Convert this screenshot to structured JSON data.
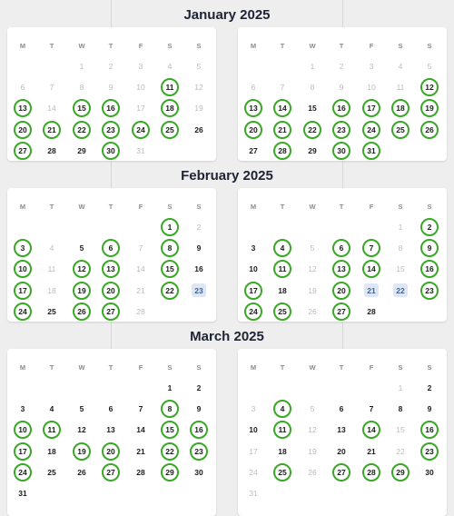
{
  "colors": {
    "selected_ring": "#3aa827",
    "highlight": "#dce6f5",
    "dim_text": "#bcbcbc"
  },
  "weekdays": [
    "M",
    "T",
    "W",
    "T",
    "F",
    "S",
    "S"
  ],
  "months": [
    {
      "title": "January 2025",
      "calendars": [
        {
          "rows": [
            [
              null,
              null,
              {
                "d": "1",
                "s": "dim"
              },
              {
                "d": "2",
                "s": "dim"
              },
              {
                "d": "3",
                "s": "dim"
              },
              {
                "d": "4",
                "s": "dim"
              },
              {
                "d": "5",
                "s": "dim"
              }
            ],
            [
              {
                "d": "6",
                "s": "dim"
              },
              {
                "d": "7",
                "s": "dim"
              },
              {
                "d": "8",
                "s": "dim"
              },
              {
                "d": "9",
                "s": "dim"
              },
              {
                "d": "10",
                "s": "dim"
              },
              {
                "d": "11",
                "s": "sel"
              },
              {
                "d": "12",
                "s": "dim"
              }
            ],
            [
              {
                "d": "13",
                "s": "sel"
              },
              {
                "d": "14",
                "s": "dim"
              },
              {
                "d": "15",
                "s": "sel"
              },
              {
                "d": "16",
                "s": "sel"
              },
              {
                "d": "17",
                "s": "dim"
              },
              {
                "d": "18",
                "s": "sel"
              },
              {
                "d": "19",
                "s": "dim"
              }
            ],
            [
              {
                "d": "20",
                "s": "sel"
              },
              {
                "d": "21",
                "s": "sel"
              },
              {
                "d": "22",
                "s": "sel"
              },
              {
                "d": "23",
                "s": "sel"
              },
              {
                "d": "24",
                "s": "sel"
              },
              {
                "d": "25",
                "s": "sel"
              },
              {
                "d": "26",
                "s": "n"
              }
            ],
            [
              {
                "d": "27",
                "s": "sel"
              },
              {
                "d": "28",
                "s": "n"
              },
              {
                "d": "29",
                "s": "n"
              },
              {
                "d": "30",
                "s": "sel"
              },
              {
                "d": "31",
                "s": "dim"
              },
              null,
              null
            ]
          ]
        },
        {
          "rows": [
            [
              null,
              null,
              {
                "d": "1",
                "s": "dim"
              },
              {
                "d": "2",
                "s": "dim"
              },
              {
                "d": "3",
                "s": "dim"
              },
              {
                "d": "4",
                "s": "dim"
              },
              {
                "d": "5",
                "s": "dim"
              }
            ],
            [
              {
                "d": "6",
                "s": "dim"
              },
              {
                "d": "7",
                "s": "dim"
              },
              {
                "d": "8",
                "s": "dim"
              },
              {
                "d": "9",
                "s": "dim"
              },
              {
                "d": "10",
                "s": "dim"
              },
              {
                "d": "11",
                "s": "dim"
              },
              {
                "d": "12",
                "s": "sel"
              }
            ],
            [
              {
                "d": "13",
                "s": "sel"
              },
              {
                "d": "14",
                "s": "sel"
              },
              {
                "d": "15",
                "s": "n"
              },
              {
                "d": "16",
                "s": "sel"
              },
              {
                "d": "17",
                "s": "sel"
              },
              {
                "d": "18",
                "s": "sel"
              },
              {
                "d": "19",
                "s": "sel"
              }
            ],
            [
              {
                "d": "20",
                "s": "sel"
              },
              {
                "d": "21",
                "s": "sel"
              },
              {
                "d": "22",
                "s": "sel"
              },
              {
                "d": "23",
                "s": "sel"
              },
              {
                "d": "24",
                "s": "sel"
              },
              {
                "d": "25",
                "s": "sel"
              },
              {
                "d": "26",
                "s": "sel"
              }
            ],
            [
              {
                "d": "27",
                "s": "n"
              },
              {
                "d": "28",
                "s": "sel"
              },
              {
                "d": "29",
                "s": "n"
              },
              {
                "d": "30",
                "s": "sel"
              },
              {
                "d": "31",
                "s": "sel"
              },
              null,
              null
            ]
          ]
        }
      ]
    },
    {
      "title": "February 2025",
      "calendars": [
        {
          "rows": [
            [
              null,
              null,
              null,
              null,
              null,
              {
                "d": "1",
                "s": "sel"
              },
              {
                "d": "2",
                "s": "dim"
              }
            ],
            [
              {
                "d": "3",
                "s": "sel"
              },
              {
                "d": "4",
                "s": "dim"
              },
              {
                "d": "5",
                "s": "n"
              },
              {
                "d": "6",
                "s": "sel"
              },
              {
                "d": "7",
                "s": "dim"
              },
              {
                "d": "8",
                "s": "sel"
              },
              {
                "d": "9",
                "s": "n"
              }
            ],
            [
              {
                "d": "10",
                "s": "sel"
              },
              {
                "d": "11",
                "s": "dim"
              },
              {
                "d": "12",
                "s": "sel"
              },
              {
                "d": "13",
                "s": "sel"
              },
              {
                "d": "14",
                "s": "dim"
              },
              {
                "d": "15",
                "s": "sel"
              },
              {
                "d": "16",
                "s": "n"
              }
            ],
            [
              {
                "d": "17",
                "s": "sel"
              },
              {
                "d": "18",
                "s": "dim"
              },
              {
                "d": "19",
                "s": "sel"
              },
              {
                "d": "20",
                "s": "sel"
              },
              {
                "d": "21",
                "s": "dim"
              },
              {
                "d": "22",
                "s": "sel"
              },
              {
                "d": "23",
                "s": "hl"
              }
            ],
            [
              {
                "d": "24",
                "s": "sel"
              },
              {
                "d": "25",
                "s": "n"
              },
              {
                "d": "26",
                "s": "sel"
              },
              {
                "d": "27",
                "s": "sel"
              },
              {
                "d": "28",
                "s": "dim"
              },
              null,
              null
            ]
          ]
        },
        {
          "rows": [
            [
              null,
              null,
              null,
              null,
              null,
              {
                "d": "1",
                "s": "dim"
              },
              {
                "d": "2",
                "s": "sel"
              }
            ],
            [
              {
                "d": "3",
                "s": "n"
              },
              {
                "d": "4",
                "s": "sel"
              },
              {
                "d": "5",
                "s": "dim"
              },
              {
                "d": "6",
                "s": "sel"
              },
              {
                "d": "7",
                "s": "sel"
              },
              {
                "d": "8",
                "s": "dim"
              },
              {
                "d": "9",
                "s": "sel"
              }
            ],
            [
              {
                "d": "10",
                "s": "n"
              },
              {
                "d": "11",
                "s": "sel"
              },
              {
                "d": "12",
                "s": "dim"
              },
              {
                "d": "13",
                "s": "sel"
              },
              {
                "d": "14",
                "s": "sel"
              },
              {
                "d": "15",
                "s": "dim"
              },
              {
                "d": "16",
                "s": "sel"
              }
            ],
            [
              {
                "d": "17",
                "s": "sel"
              },
              {
                "d": "18",
                "s": "n"
              },
              {
                "d": "19",
                "s": "dim"
              },
              {
                "d": "20",
                "s": "sel"
              },
              {
                "d": "21",
                "s": "hl"
              },
              {
                "d": "22",
                "s": "hl"
              },
              {
                "d": "23",
                "s": "sel"
              }
            ],
            [
              {
                "d": "24",
                "s": "sel"
              },
              {
                "d": "25",
                "s": "sel"
              },
              {
                "d": "26",
                "s": "dim"
              },
              {
                "d": "27",
                "s": "sel"
              },
              {
                "d": "28",
                "s": "n"
              },
              null,
              null
            ]
          ]
        }
      ]
    },
    {
      "title": "March 2025",
      "calendars": [
        {
          "rows": [
            [
              null,
              null,
              null,
              null,
              null,
              {
                "d": "1",
                "s": "n"
              },
              {
                "d": "2",
                "s": "n"
              }
            ],
            [
              {
                "d": "3",
                "s": "n"
              },
              {
                "d": "4",
                "s": "n"
              },
              {
                "d": "5",
                "s": "n"
              },
              {
                "d": "6",
                "s": "n"
              },
              {
                "d": "7",
                "s": "n"
              },
              {
                "d": "8",
                "s": "sel"
              },
              {
                "d": "9",
                "s": "n"
              }
            ],
            [
              {
                "d": "10",
                "s": "sel"
              },
              {
                "d": "11",
                "s": "sel"
              },
              {
                "d": "12",
                "s": "n"
              },
              {
                "d": "13",
                "s": "n"
              },
              {
                "d": "14",
                "s": "n"
              },
              {
                "d": "15",
                "s": "sel"
              },
              {
                "d": "16",
                "s": "sel"
              }
            ],
            [
              {
                "d": "17",
                "s": "sel"
              },
              {
                "d": "18",
                "s": "n"
              },
              {
                "d": "19",
                "s": "sel"
              },
              {
                "d": "20",
                "s": "sel"
              },
              {
                "d": "21",
                "s": "n"
              },
              {
                "d": "22",
                "s": "sel"
              },
              {
                "d": "23",
                "s": "sel"
              }
            ],
            [
              {
                "d": "24",
                "s": "sel"
              },
              {
                "d": "25",
                "s": "n"
              },
              {
                "d": "26",
                "s": "n"
              },
              {
                "d": "27",
                "s": "sel"
              },
              {
                "d": "28",
                "s": "n"
              },
              {
                "d": "29",
                "s": "sel"
              },
              {
                "d": "30",
                "s": "n"
              }
            ],
            [
              {
                "d": "31",
                "s": "n"
              },
              null,
              null,
              null,
              null,
              null,
              null
            ]
          ]
        },
        {
          "rows": [
            [
              null,
              null,
              null,
              null,
              null,
              {
                "d": "1",
                "s": "dim"
              },
              {
                "d": "2",
                "s": "n"
              }
            ],
            [
              {
                "d": "3",
                "s": "dim"
              },
              {
                "d": "4",
                "s": "sel"
              },
              {
                "d": "5",
                "s": "dim"
              },
              {
                "d": "6",
                "s": "n"
              },
              {
                "d": "7",
                "s": "n"
              },
              {
                "d": "8",
                "s": "n"
              },
              {
                "d": "9",
                "s": "n"
              }
            ],
            [
              {
                "d": "10",
                "s": "n"
              },
              {
                "d": "11",
                "s": "sel"
              },
              {
                "d": "12",
                "s": "dim"
              },
              {
                "d": "13",
                "s": "n"
              },
              {
                "d": "14",
                "s": "sel"
              },
              {
                "d": "15",
                "s": "dim"
              },
              {
                "d": "16",
                "s": "sel"
              }
            ],
            [
              {
                "d": "17",
                "s": "dim"
              },
              {
                "d": "18",
                "s": "n"
              },
              {
                "d": "19",
                "s": "dim"
              },
              {
                "d": "20",
                "s": "n"
              },
              {
                "d": "21",
                "s": "n"
              },
              {
                "d": "22",
                "s": "dim"
              },
              {
                "d": "23",
                "s": "sel"
              }
            ],
            [
              {
                "d": "24",
                "s": "dim"
              },
              {
                "d": "25",
                "s": "sel"
              },
              {
                "d": "26",
                "s": "dim"
              },
              {
                "d": "27",
                "s": "sel"
              },
              {
                "d": "28",
                "s": "sel"
              },
              {
                "d": "29",
                "s": "sel"
              },
              {
                "d": "30",
                "s": "n"
              }
            ],
            [
              {
                "d": "31",
                "s": "dim"
              },
              null,
              null,
              null,
              null,
              null,
              null
            ]
          ]
        }
      ]
    }
  ]
}
